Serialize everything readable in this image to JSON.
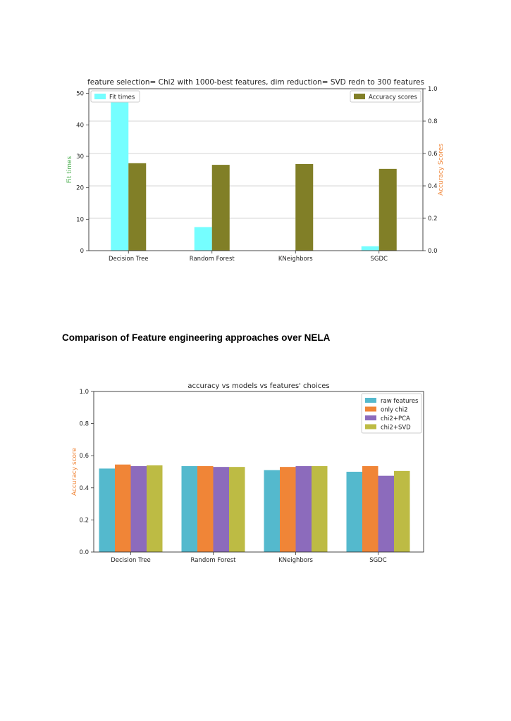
{
  "section_heading": "Comparison of Feature engineering approaches over NELA",
  "colors": {
    "fit_times": "#75FEFF",
    "accuracy_scores": "#817F27",
    "raw_features": "#54B9CD",
    "only_chi2": "#F08537",
    "chi2_pca": "#8C6BBC",
    "chi2_svd": "#BDBB44",
    "fit_label": "#4CAF50",
    "acc_label": "#F08537"
  },
  "chart_data": [
    {
      "type": "bar",
      "title": "feature selection= Chi2 with 1000-best features, dim reduction= SVD redn to 300 features",
      "categories": [
        "Decision Tree",
        "Random Forest",
        "KNeighbors",
        "SGDC"
      ],
      "ylabel": "Fit times",
      "y2label": "Accuracy Scores",
      "ylim": [
        0,
        51.5
      ],
      "y2lim": [
        0,
        1.0
      ],
      "yticks": [
        0,
        10,
        20,
        30,
        40,
        50
      ],
      "y2ticks": [
        0,
        0.2,
        0.4,
        0.6,
        0.8,
        1.0
      ],
      "grid": true,
      "series": [
        {
          "name": "Fit times",
          "axis": "left",
          "values": [
            48,
            7.5,
            0.05,
            1.4
          ]
        },
        {
          "name": "Accuracy scores",
          "axis": "right",
          "values": [
            0.54,
            0.53,
            0.535,
            0.505
          ]
        }
      ],
      "legend": [
        "upper-left",
        "upper-right"
      ]
    },
    {
      "type": "bar",
      "title": "accuracy vs models vs features' choices",
      "categories": [
        "Decision Tree",
        "Random Forest",
        "KNeighbors",
        "SGDC"
      ],
      "ylabel": "Accuracy score",
      "ylim": [
        0,
        1.0
      ],
      "yticks": [
        0.0,
        0.2,
        0.4,
        0.6,
        0.8,
        1.0
      ],
      "grid": false,
      "series": [
        {
          "name": "raw features",
          "values": [
            0.52,
            0.535,
            0.51,
            0.5
          ]
        },
        {
          "name": "only chi2",
          "values": [
            0.545,
            0.535,
            0.53,
            0.535
          ]
        },
        {
          "name": "chi2+PCA",
          "values": [
            0.535,
            0.53,
            0.535,
            0.475
          ]
        },
        {
          "name": "chi2+SVD",
          "values": [
            0.54,
            0.53,
            0.535,
            0.505
          ]
        }
      ],
      "legend": "upper-right"
    }
  ]
}
